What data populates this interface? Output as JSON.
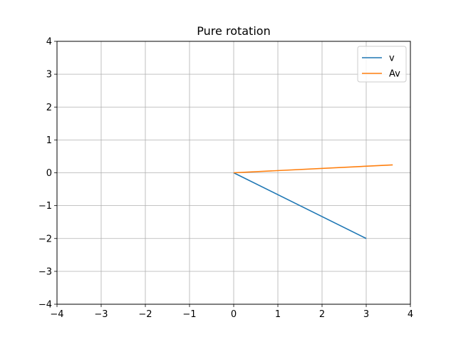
{
  "chart_data": {
    "type": "line",
    "title": "Pure rotation",
    "xlabel": "",
    "ylabel": "",
    "xlim": [
      -4,
      4
    ],
    "ylim": [
      -4,
      4
    ],
    "xticks": [
      -4,
      -3,
      -2,
      -1,
      0,
      1,
      2,
      3,
      4
    ],
    "yticks": [
      -4,
      -3,
      -2,
      -1,
      0,
      1,
      2,
      3,
      4
    ],
    "xtick_labels": [
      "−4",
      "−3",
      "−2",
      "−1",
      "0",
      "1",
      "2",
      "3",
      "4"
    ],
    "ytick_labels": [
      "−4",
      "−3",
      "−2",
      "−1",
      "0",
      "1",
      "2",
      "3",
      "4"
    ],
    "grid": true,
    "legend_position": "top-right",
    "series": [
      {
        "name": "v",
        "color": "#1f77b4",
        "x": [
          0,
          3
        ],
        "y": [
          0,
          -2
        ]
      },
      {
        "name": "Av",
        "color": "#ff7f0e",
        "x": [
          0,
          3.6
        ],
        "y": [
          0,
          0.24
        ]
      }
    ]
  }
}
